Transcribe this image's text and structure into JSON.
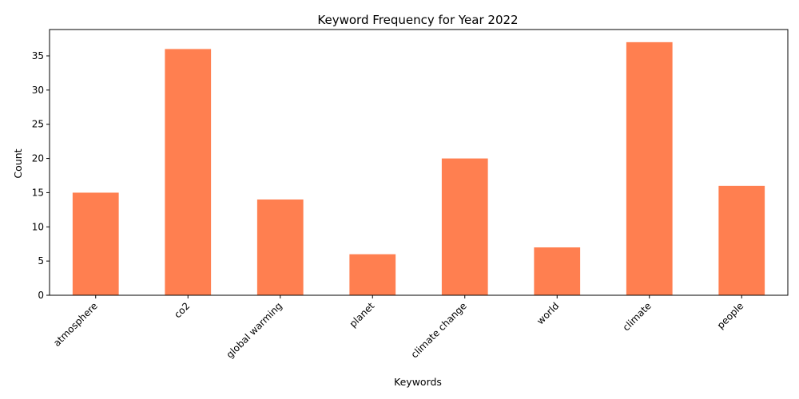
{
  "chart_data": {
    "type": "bar",
    "title": "Keyword Frequency for Year 2022",
    "xlabel": "Keywords",
    "ylabel": "Count",
    "categories": [
      "atmosphere",
      "co2",
      "global warming",
      "planet",
      "climate change",
      "world",
      "climate",
      "people"
    ],
    "values": [
      15,
      36,
      14,
      6,
      20,
      7,
      37,
      16
    ],
    "ylim": [
      0,
      38.85
    ],
    "yticks": [
      0,
      5,
      10,
      15,
      20,
      25,
      30,
      35
    ],
    "bar_color": "#ff7f50",
    "grid": false,
    "legend": "none",
    "xtick_rotation": 45
  }
}
